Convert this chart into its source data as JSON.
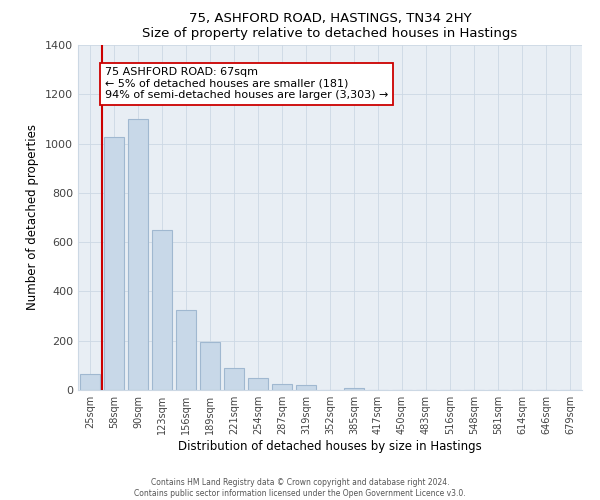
{
  "title_line1": "75, ASHFORD ROAD, HASTINGS, TN34 2HY",
  "title_line2": "Size of property relative to detached houses in Hastings",
  "xlabel": "Distribution of detached houses by size in Hastings",
  "ylabel": "Number of detached properties",
  "bar_labels": [
    "25sqm",
    "58sqm",
    "90sqm",
    "123sqm",
    "156sqm",
    "189sqm",
    "221sqm",
    "254sqm",
    "287sqm",
    "319sqm",
    "352sqm",
    "385sqm",
    "417sqm",
    "450sqm",
    "483sqm",
    "516sqm",
    "548sqm",
    "581sqm",
    "614sqm",
    "646sqm",
    "679sqm"
  ],
  "bar_values": [
    65,
    1025,
    1100,
    650,
    325,
    195,
    90,
    50,
    25,
    20,
    0,
    10,
    0,
    0,
    0,
    0,
    0,
    0,
    0,
    0,
    0
  ],
  "bar_color": "#c8d8e8",
  "bar_edge_color": "#a0b8d0",
  "vline_x": 0.5,
  "vline_color": "#cc0000",
  "annotation_title": "75 ASHFORD ROAD: 67sqm",
  "annotation_line1": "← 5% of detached houses are smaller (181)",
  "annotation_line2": "94% of semi-detached houses are larger (3,303) →",
  "annotation_box_color": "#ffffff",
  "annotation_box_edge": "#cc0000",
  "ylim": [
    0,
    1400
  ],
  "yticks": [
    0,
    200,
    400,
    600,
    800,
    1000,
    1200,
    1400
  ],
  "footer_line1": "Contains HM Land Registry data © Crown copyright and database right 2024.",
  "footer_line2": "Contains public sector information licensed under the Open Government Licence v3.0.",
  "background_color": "#ffffff",
  "grid_color": "#ccd8e4"
}
